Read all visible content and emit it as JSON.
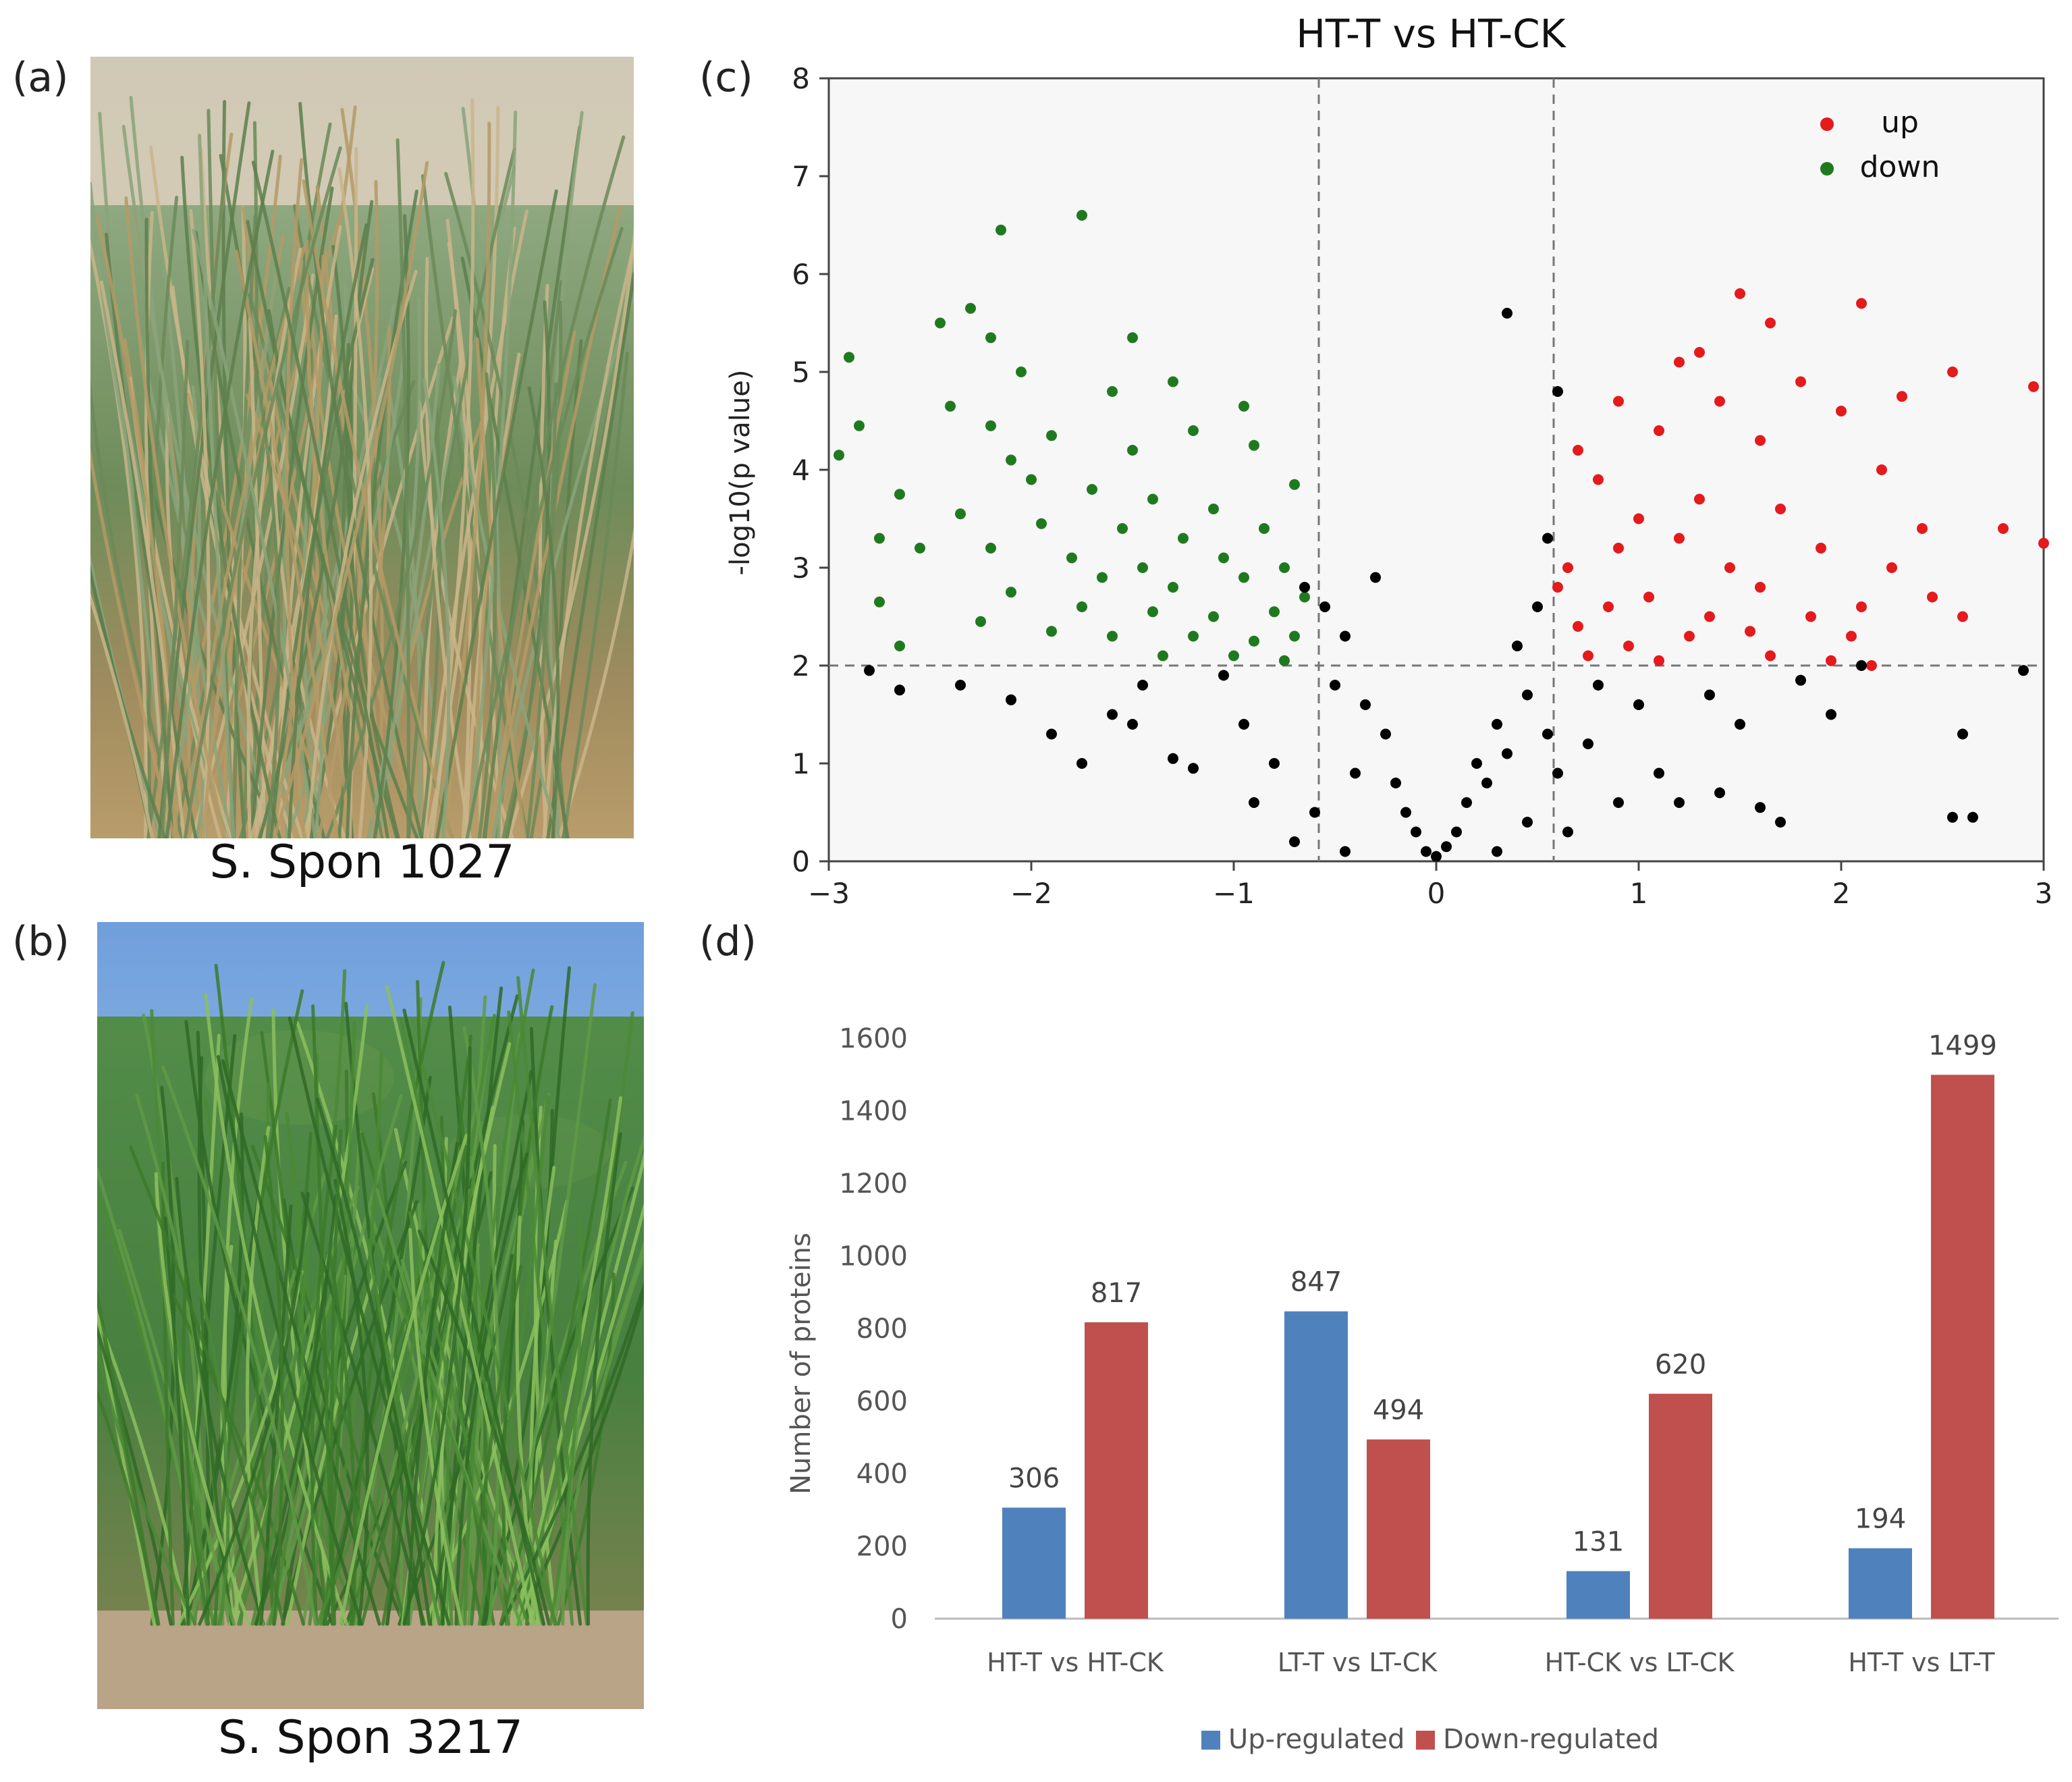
{
  "panels": {
    "a": {
      "label": "(a)",
      "caption": "S. Spon 1027"
    },
    "b": {
      "label": "(b)",
      "caption": "S. Spon 3217"
    },
    "c": {
      "label": "(c)"
    },
    "d": {
      "label": "(d)"
    }
  },
  "colors": {
    "up_point": "#e41a1c",
    "down_point": "#1f7a1f",
    "ns_point": "#000000",
    "up_bar": "#4f81bd",
    "down_bar": "#c0504d"
  },
  "chart_data": [
    {
      "type": "scatter",
      "title": "HT-T vs HT-CK",
      "xlabel": "",
      "ylabel": "-log10(p value)",
      "xlim": [
        -3,
        3
      ],
      "ylim": [
        0,
        8
      ],
      "xticks": [
        "−3",
        "−2",
        "−1",
        "0",
        "1",
        "2",
        "3"
      ],
      "yticks": [
        "0",
        "1",
        "2",
        "3",
        "4",
        "5",
        "6",
        "7",
        "8"
      ],
      "thresholds": {
        "x": [
          -0.58,
          0.58
        ],
        "y": 2
      },
      "legend": {
        "position": "top-right",
        "entries": [
          {
            "name": "up",
            "color": "#e41a1c"
          },
          {
            "name": "down",
            "color": "#1f7a1f"
          }
        ]
      },
      "series": [
        {
          "name": "up",
          "points": [
            [
              0.9,
              4.7
            ],
            [
              1.3,
              5.2
            ],
            [
              1.5,
              5.8
            ],
            [
              1.65,
              5.5
            ],
            [
              2.1,
              5.7
            ],
            [
              1.2,
              5.1
            ],
            [
              2.55,
              5.0
            ],
            [
              2.95,
              4.85
            ],
            [
              1.8,
              4.9
            ],
            [
              2.3,
              4.75
            ],
            [
              1.4,
              4.7
            ],
            [
              0.7,
              4.2
            ],
            [
              1.1,
              4.4
            ],
            [
              1.6,
              4.3
            ],
            [
              2.0,
              4.6
            ],
            [
              2.2,
              4.0
            ],
            [
              0.8,
              3.9
            ],
            [
              1.0,
              3.5
            ],
            [
              1.3,
              3.7
            ],
            [
              1.7,
              3.6
            ],
            [
              2.4,
              3.4
            ],
            [
              2.8,
              3.4
            ],
            [
              3.0,
              3.25
            ],
            [
              0.65,
              3.0
            ],
            [
              0.9,
              3.2
            ],
            [
              1.2,
              3.3
            ],
            [
              1.45,
              3.0
            ],
            [
              1.9,
              3.2
            ],
            [
              2.25,
              3.0
            ],
            [
              0.6,
              2.8
            ],
            [
              0.85,
              2.6
            ],
            [
              1.05,
              2.7
            ],
            [
              1.35,
              2.5
            ],
            [
              1.6,
              2.8
            ],
            [
              2.1,
              2.6
            ],
            [
              2.45,
              2.7
            ],
            [
              2.6,
              2.5
            ],
            [
              0.7,
              2.4
            ],
            [
              0.95,
              2.2
            ],
            [
              1.25,
              2.3
            ],
            [
              1.55,
              2.35
            ],
            [
              1.85,
              2.5
            ],
            [
              2.05,
              2.3
            ],
            [
              0.75,
              2.1
            ],
            [
              1.1,
              2.05
            ],
            [
              1.65,
              2.1
            ],
            [
              1.95,
              2.05
            ],
            [
              2.15,
              2.0
            ]
          ]
        },
        {
          "name": "down",
          "points": [
            [
              -1.75,
              6.6
            ],
            [
              -2.15,
              6.45
            ],
            [
              -2.3,
              5.65
            ],
            [
              -2.45,
              5.5
            ],
            [
              -2.2,
              5.35
            ],
            [
              -1.5,
              5.35
            ],
            [
              -2.9,
              5.15
            ],
            [
              -2.05,
              5.0
            ],
            [
              -1.3,
              4.9
            ],
            [
              -1.6,
              4.8
            ],
            [
              -0.95,
              4.65
            ],
            [
              -2.4,
              4.65
            ],
            [
              -2.85,
              4.45
            ],
            [
              -2.2,
              4.45
            ],
            [
              -1.9,
              4.35
            ],
            [
              -1.2,
              4.4
            ],
            [
              -2.95,
              4.15
            ],
            [
              -2.1,
              4.1
            ],
            [
              -1.5,
              4.2
            ],
            [
              -0.9,
              4.25
            ],
            [
              -2.65,
              3.75
            ],
            [
              -2.0,
              3.9
            ],
            [
              -1.7,
              3.8
            ],
            [
              -1.4,
              3.7
            ],
            [
              -1.1,
              3.6
            ],
            [
              -0.7,
              3.85
            ],
            [
              -2.35,
              3.55
            ],
            [
              -1.95,
              3.45
            ],
            [
              -1.55,
              3.4
            ],
            [
              -1.25,
              3.3
            ],
            [
              -0.85,
              3.4
            ],
            [
              -2.75,
              3.3
            ],
            [
              -2.2,
              3.2
            ],
            [
              -1.8,
              3.1
            ],
            [
              -1.45,
              3.0
            ],
            [
              -1.05,
              3.1
            ],
            [
              -0.75,
              3.0
            ],
            [
              -2.55,
              3.2
            ],
            [
              -1.65,
              2.9
            ],
            [
              -1.3,
              2.8
            ],
            [
              -0.95,
              2.9
            ],
            [
              -0.65,
              2.7
            ],
            [
              -2.75,
              2.65
            ],
            [
              -2.1,
              2.75
            ],
            [
              -1.75,
              2.6
            ],
            [
              -1.4,
              2.55
            ],
            [
              -1.1,
              2.5
            ],
            [
              -0.8,
              2.55
            ],
            [
              -2.25,
              2.45
            ],
            [
              -1.9,
              2.35
            ],
            [
              -1.6,
              2.3
            ],
            [
              -1.2,
              2.3
            ],
            [
              -0.9,
              2.25
            ],
            [
              -0.7,
              2.3
            ],
            [
              -2.65,
              2.2
            ],
            [
              -1.35,
              2.1
            ],
            [
              -1.0,
              2.1
            ],
            [
              -0.75,
              2.05
            ]
          ]
        },
        {
          "name": "ns",
          "points": [
            [
              0.35,
              5.6
            ],
            [
              0.6,
              4.8
            ],
            [
              -2.8,
              1.95
            ],
            [
              -2.65,
              1.75
            ],
            [
              -2.35,
              1.8
            ],
            [
              -2.1,
              1.65
            ],
            [
              -1.9,
              1.3
            ],
            [
              -1.75,
              1.0
            ],
            [
              -1.6,
              1.5
            ],
            [
              -1.5,
              1.4
            ],
            [
              -1.45,
              1.8
            ],
            [
              -1.3,
              1.05
            ],
            [
              -1.2,
              0.95
            ],
            [
              -1.05,
              1.9
            ],
            [
              -0.95,
              1.4
            ],
            [
              -0.9,
              0.6
            ],
            [
              -0.8,
              1.0
            ],
            [
              -0.7,
              0.2
            ],
            [
              -0.65,
              2.8
            ],
            [
              -0.55,
              2.6
            ],
            [
              -0.5,
              1.8
            ],
            [
              -0.45,
              2.3
            ],
            [
              -0.4,
              0.9
            ],
            [
              -0.35,
              1.6
            ],
            [
              -0.3,
              2.9
            ],
            [
              -0.25,
              1.3
            ],
            [
              -0.2,
              0.8
            ],
            [
              -0.15,
              0.5
            ],
            [
              -0.1,
              0.3
            ],
            [
              -0.05,
              0.1
            ],
            [
              0.0,
              0.05
            ],
            [
              0.05,
              0.15
            ],
            [
              0.1,
              0.3
            ],
            [
              0.15,
              0.6
            ],
            [
              0.2,
              1.0
            ],
            [
              0.25,
              0.8
            ],
            [
              0.3,
              1.4
            ],
            [
              0.35,
              1.1
            ],
            [
              0.4,
              2.2
            ],
            [
              0.45,
              1.7
            ],
            [
              0.5,
              2.6
            ],
            [
              0.55,
              3.3
            ],
            [
              0.55,
              1.3
            ],
            [
              0.6,
              0.9
            ],
            [
              0.65,
              0.3
            ],
            [
              0.75,
              1.2
            ],
            [
              0.8,
              1.8
            ],
            [
              0.9,
              0.6
            ],
            [
              1.0,
              1.6
            ],
            [
              1.1,
              0.9
            ],
            [
              1.2,
              0.6
            ],
            [
              1.35,
              1.7
            ],
            [
              1.4,
              0.7
            ],
            [
              1.5,
              1.4
            ],
            [
              1.6,
              0.55
            ],
            [
              1.7,
              0.4
            ],
            [
              1.8,
              1.85
            ],
            [
              1.95,
              1.5
            ],
            [
              2.1,
              2.0
            ],
            [
              2.55,
              0.45
            ],
            [
              2.6,
              1.3
            ],
            [
              2.9,
              1.95
            ],
            [
              2.65,
              0.45
            ],
            [
              -0.6,
              0.5
            ],
            [
              -0.45,
              0.1
            ],
            [
              0.3,
              0.1
            ],
            [
              0.45,
              0.4
            ]
          ]
        }
      ]
    },
    {
      "type": "bar",
      "title": "",
      "xlabel": "",
      "ylabel": "Number of proteins",
      "ylim": [
        0,
        1600
      ],
      "yticks": [
        "0",
        "200",
        "400",
        "600",
        "800",
        "1000",
        "1200",
        "1400",
        "1600"
      ],
      "categories": [
        "HT-T vs HT-CK",
        "LT-T vs LT-CK",
        "HT-CK vs LT-CK",
        "HT-T vs LT-T"
      ],
      "series": [
        {
          "name": "Up-regulated",
          "values": [
            306,
            847,
            131,
            194
          ]
        },
        {
          "name": "Down-regulated",
          "values": [
            817,
            494,
            620,
            1499
          ]
        }
      ],
      "legend": {
        "position": "bottom-center"
      }
    }
  ]
}
